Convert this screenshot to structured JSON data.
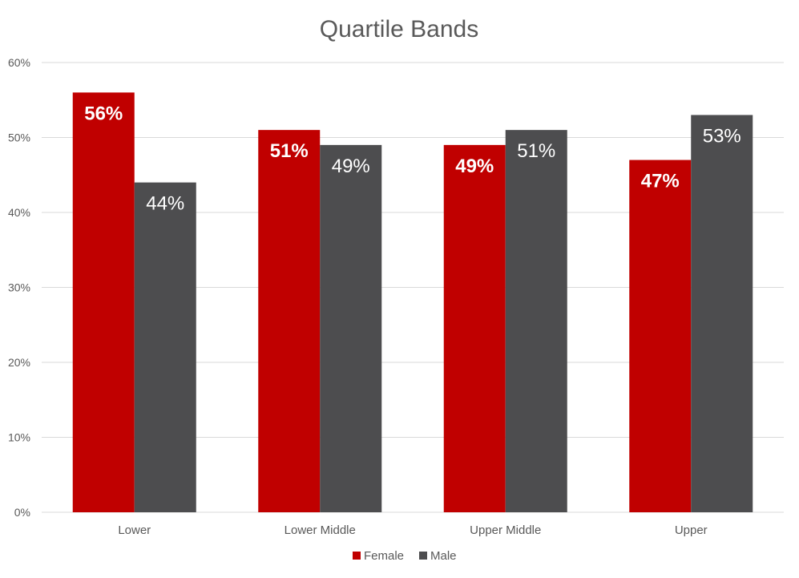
{
  "chart_data": {
    "type": "bar",
    "title": "Quartile Bands",
    "categories": [
      "Lower",
      "Lower Middle",
      "Upper Middle",
      "Upper"
    ],
    "series": [
      {
        "name": "Female",
        "color": "#c00000",
        "values": [
          56,
          51,
          49,
          47
        ],
        "labels": [
          "56%",
          "51%",
          "49%",
          "47%"
        ]
      },
      {
        "name": "Male",
        "color": "#4d4d4f",
        "values": [
          44,
          49,
          51,
          53
        ],
        "labels": [
          "44%",
          "49%",
          "51%",
          "53%"
        ]
      }
    ],
    "ylim": [
      0,
      60
    ],
    "yticks": [
      0,
      10,
      20,
      30,
      40,
      50,
      60
    ],
    "ytick_labels": [
      "0%",
      "10%",
      "20%",
      "30%",
      "40%",
      "50%",
      "60%"
    ],
    "grid": true,
    "legend_position": "bottom"
  }
}
